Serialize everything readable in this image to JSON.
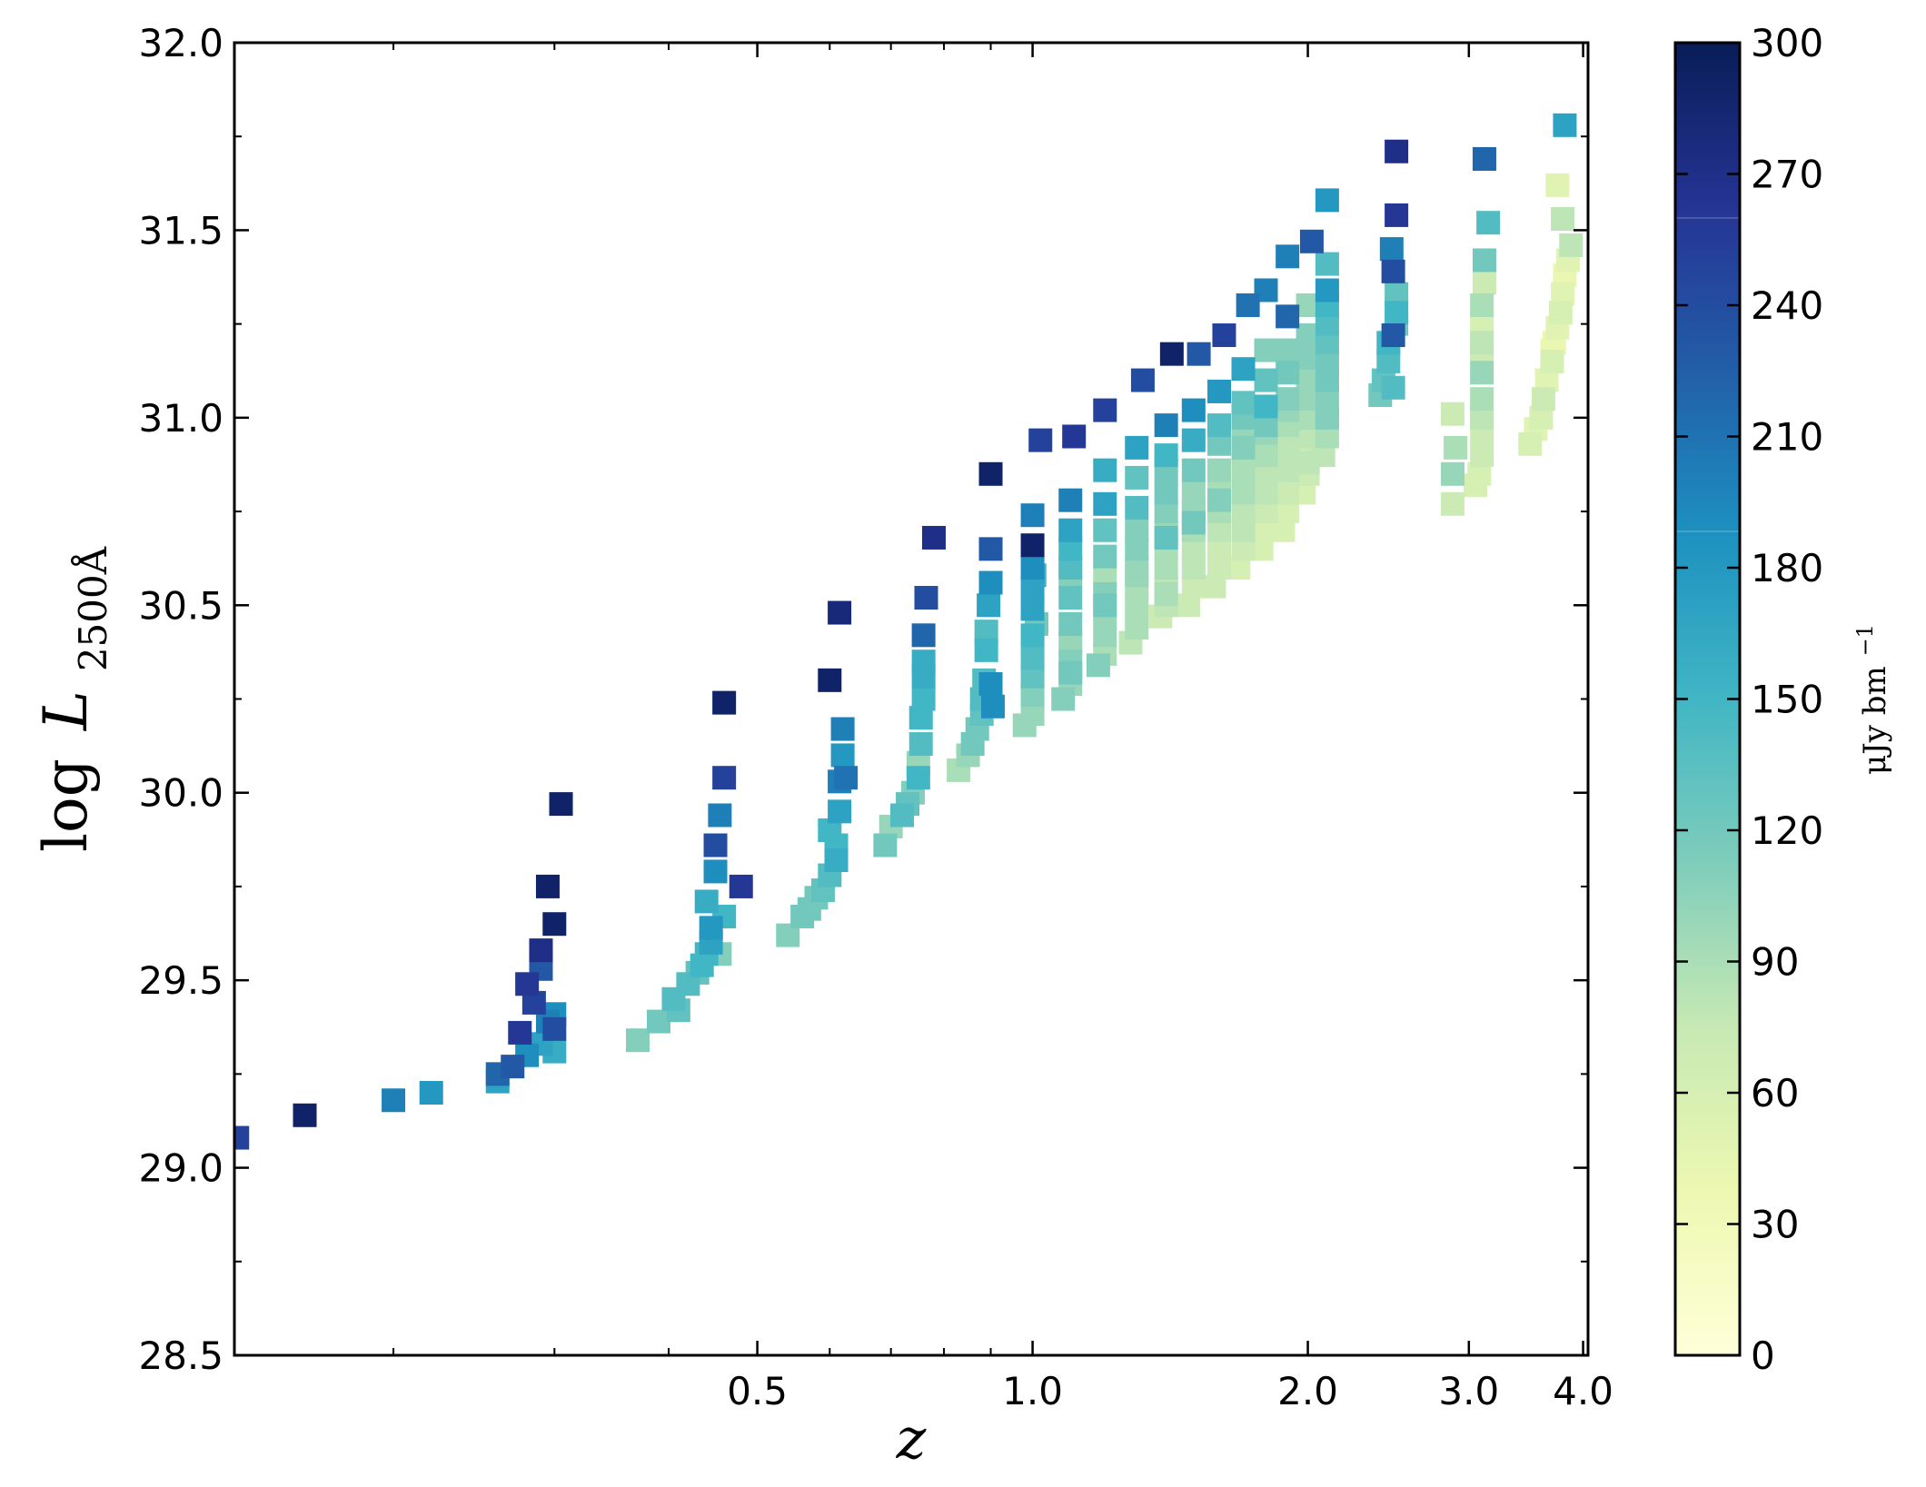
{
  "chart_data": {
    "type": "scatter",
    "xlabel": "z",
    "ylabel": "log L₂₅₀₀Å",
    "ylabel_main": "log",
    "ylabel_var": "L",
    "ylabel_sub": "2500Å",
    "xscale": "log",
    "xlim": [
      0.134,
      4.05
    ],
    "ylim": [
      28.5,
      32.0
    ],
    "xticks": [
      0.5,
      1.0,
      2.0,
      3.0,
      4.0
    ],
    "xtick_labels": [
      "0.5",
      "1.0",
      "2.0",
      "3.0",
      "4.0"
    ],
    "yticks": [
      28.5,
      29.0,
      29.5,
      30.0,
      30.5,
      31.0,
      31.5,
      32.0
    ],
    "ytick_labels": [
      "28.5",
      "29.0",
      "29.5",
      "30.0",
      "30.5",
      "31.0",
      "31.5",
      "32.0"
    ],
    "colorbar": {
      "label": "μJy bm⁻¹",
      "label_main": "μJy bm",
      "label_sup": "−1",
      "min": 0,
      "max": 300,
      "ticks": [
        0,
        30,
        60,
        90,
        120,
        150,
        180,
        210,
        240,
        270,
        300
      ],
      "tick_labels": [
        "0",
        "30",
        "60",
        "90",
        "120",
        "150",
        "180",
        "210",
        "240",
        "270",
        "300"
      ],
      "colormap": [
        "#ffffd9",
        "#edf8b1",
        "#c7e9b4",
        "#7fcdbb",
        "#41b6c4",
        "#1d91c0",
        "#225ea8",
        "#253494",
        "#081d58"
      ]
    },
    "points": [
      [
        0.135,
        29.08,
        250
      ],
      [
        0.16,
        29.14,
        290
      ],
      [
        0.2,
        29.18,
        200
      ],
      [
        0.22,
        29.2,
        180
      ],
      [
        0.26,
        29.23,
        170
      ],
      [
        0.26,
        29.25,
        220
      ],
      [
        0.27,
        29.27,
        230
      ],
      [
        0.275,
        29.36,
        260
      ],
      [
        0.28,
        29.3,
        190
      ],
      [
        0.28,
        29.49,
        260
      ],
      [
        0.285,
        29.44,
        250
      ],
      [
        0.29,
        29.33,
        170
      ],
      [
        0.29,
        29.58,
        270
      ],
      [
        0.29,
        29.53,
        230
      ],
      [
        0.295,
        29.39,
        200
      ],
      [
        0.295,
        29.75,
        290
      ],
      [
        0.3,
        29.41,
        190
      ],
      [
        0.3,
        29.65,
        290
      ],
      [
        0.3,
        29.37,
        240
      ],
      [
        0.3,
        29.31,
        160
      ],
      [
        0.305,
        29.97,
        290
      ],
      [
        0.37,
        29.34,
        110
      ],
      [
        0.39,
        29.39,
        120
      ],
      [
        0.405,
        29.45,
        140
      ],
      [
        0.41,
        29.42,
        130
      ],
      [
        0.42,
        29.49,
        140
      ],
      [
        0.43,
        29.52,
        130
      ],
      [
        0.435,
        29.54,
        150
      ],
      [
        0.44,
        29.57,
        150
      ],
      [
        0.44,
        29.71,
        160
      ],
      [
        0.445,
        29.6,
        170
      ],
      [
        0.445,
        29.64,
        180
      ],
      [
        0.45,
        29.86,
        240
      ],
      [
        0.45,
        29.79,
        190
      ],
      [
        0.455,
        29.94,
        200
      ],
      [
        0.455,
        29.57,
        110
      ],
      [
        0.46,
        29.67,
        150
      ],
      [
        0.46,
        30.04,
        250
      ],
      [
        0.46,
        30.24,
        290
      ],
      [
        0.48,
        29.75,
        260
      ],
      [
        0.54,
        29.62,
        110
      ],
      [
        0.56,
        29.67,
        120
      ],
      [
        0.57,
        29.69,
        120
      ],
      [
        0.58,
        29.72,
        120
      ],
      [
        0.59,
        29.74,
        130
      ],
      [
        0.6,
        29.78,
        140
      ],
      [
        0.6,
        29.9,
        150
      ],
      [
        0.61,
        29.82,
        160
      ],
      [
        0.61,
        29.86,
        150
      ],
      [
        0.615,
        29.95,
        170
      ],
      [
        0.615,
        30.03,
        200
      ],
      [
        0.62,
        30.1,
        180
      ],
      [
        0.62,
        30.17,
        200
      ],
      [
        0.625,
        30.04,
        210
      ],
      [
        0.6,
        30.3,
        290
      ],
      [
        0.615,
        30.48,
        280
      ],
      [
        0.69,
        29.86,
        120
      ],
      [
        0.7,
        29.91,
        100
      ],
      [
        0.72,
        29.94,
        140
      ],
      [
        0.73,
        29.97,
        130
      ],
      [
        0.74,
        30.0,
        110
      ],
      [
        0.75,
        30.04,
        150
      ],
      [
        0.75,
        30.08,
        100
      ],
      [
        0.755,
        30.13,
        140
      ],
      [
        0.755,
        30.2,
        150
      ],
      [
        0.76,
        30.25,
        150
      ],
      [
        0.76,
        30.31,
        160
      ],
      [
        0.76,
        30.35,
        160
      ],
      [
        0.76,
        30.42,
        220
      ],
      [
        0.765,
        30.52,
        240
      ],
      [
        0.78,
        30.68,
        270
      ],
      [
        0.83,
        30.06,
        90
      ],
      [
        0.85,
        30.1,
        100
      ],
      [
        0.86,
        30.13,
        120
      ],
      [
        0.87,
        30.17,
        120
      ],
      [
        0.88,
        30.21,
        130
      ],
      [
        0.88,
        30.25,
        140
      ],
      [
        0.885,
        30.3,
        140
      ],
      [
        0.89,
        30.38,
        150
      ],
      [
        0.89,
        30.43,
        140
      ],
      [
        0.895,
        30.5,
        170
      ],
      [
        0.9,
        30.56,
        190
      ],
      [
        0.9,
        30.65,
        230
      ],
      [
        0.9,
        30.85,
        290
      ],
      [
        0.9,
        30.29,
        190
      ],
      [
        0.905,
        30.23,
        190
      ],
      [
        0.98,
        30.18,
        100
      ],
      [
        1.0,
        30.21,
        100
      ],
      [
        1.0,
        30.26,
        110
      ],
      [
        1.0,
        30.31,
        130
      ],
      [
        1.0,
        30.36,
        140
      ],
      [
        1.0,
        30.42,
        150
      ],
      [
        1.0,
        30.49,
        170
      ],
      [
        1.0,
        30.55,
        170
      ],
      [
        1.0,
        30.6,
        190
      ],
      [
        1.0,
        30.66,
        290
      ],
      [
        1.0,
        30.74,
        200
      ],
      [
        1.02,
        30.94,
        250
      ],
      [
        1.01,
        30.45,
        120
      ],
      [
        1.005,
        30.58,
        150
      ],
      [
        1.08,
        30.25,
        110
      ],
      [
        1.1,
        30.29,
        100
      ],
      [
        1.1,
        30.35,
        110
      ],
      [
        1.1,
        30.4,
        100
      ],
      [
        1.1,
        30.45,
        120
      ],
      [
        1.1,
        30.52,
        130
      ],
      [
        1.1,
        30.58,
        110
      ],
      [
        1.1,
        30.65,
        150
      ],
      [
        1.1,
        30.7,
        170
      ],
      [
        1.1,
        30.78,
        200
      ],
      [
        1.11,
        30.95,
        260
      ],
      [
        1.1,
        30.32,
        120
      ],
      [
        1.1,
        30.6,
        140
      ],
      [
        1.18,
        30.34,
        110
      ],
      [
        1.2,
        30.37,
        90
      ],
      [
        1.2,
        30.42,
        100
      ],
      [
        1.2,
        30.48,
        100
      ],
      [
        1.2,
        30.53,
        110
      ],
      [
        1.2,
        30.58,
        90
      ],
      [
        1.2,
        30.63,
        120
      ],
      [
        1.2,
        30.7,
        130
      ],
      [
        1.2,
        30.77,
        170
      ],
      [
        1.2,
        30.86,
        160
      ],
      [
        1.2,
        31.02,
        250
      ],
      [
        1.2,
        30.5,
        120
      ],
      [
        1.28,
        30.4,
        80
      ],
      [
        1.3,
        30.44,
        90
      ],
      [
        1.3,
        30.5,
        90
      ],
      [
        1.3,
        30.55,
        90
      ],
      [
        1.3,
        30.6,
        100
      ],
      [
        1.3,
        30.65,
        110
      ],
      [
        1.3,
        30.7,
        110
      ],
      [
        1.3,
        30.76,
        140
      ],
      [
        1.3,
        30.84,
        130
      ],
      [
        1.3,
        30.92,
        170
      ],
      [
        1.32,
        31.1,
        240
      ],
      [
        1.3,
        30.58,
        100
      ],
      [
        1.38,
        30.47,
        70
      ],
      [
        1.4,
        30.5,
        80
      ],
      [
        1.4,
        30.55,
        80
      ],
      [
        1.4,
        30.6,
        90
      ],
      [
        1.4,
        30.65,
        90
      ],
      [
        1.4,
        30.7,
        100
      ],
      [
        1.4,
        30.75,
        110
      ],
      [
        1.4,
        30.8,
        120
      ],
      [
        1.4,
        30.86,
        120
      ],
      [
        1.4,
        30.9,
        150
      ],
      [
        1.4,
        30.98,
        200
      ],
      [
        1.42,
        31.17,
        290
      ],
      [
        1.4,
        30.53,
        90
      ],
      [
        1.4,
        30.68,
        130
      ],
      [
        1.48,
        30.5,
        70
      ],
      [
        1.5,
        30.55,
        70
      ],
      [
        1.5,
        30.6,
        80
      ],
      [
        1.5,
        30.65,
        80
      ],
      [
        1.5,
        30.7,
        90
      ],
      [
        1.5,
        30.75,
        100
      ],
      [
        1.5,
        30.8,
        100
      ],
      [
        1.5,
        30.86,
        120
      ],
      [
        1.5,
        30.94,
        160
      ],
      [
        1.5,
        31.02,
        190
      ],
      [
        1.52,
        31.17,
        230
      ],
      [
        1.5,
        30.72,
        120
      ],
      [
        1.58,
        30.55,
        70
      ],
      [
        1.6,
        30.6,
        70
      ],
      [
        1.6,
        30.65,
        70
      ],
      [
        1.6,
        30.7,
        80
      ],
      [
        1.6,
        30.75,
        90
      ],
      [
        1.6,
        30.8,
        90
      ],
      [
        1.6,
        30.86,
        100
      ],
      [
        1.6,
        30.93,
        120
      ],
      [
        1.6,
        30.98,
        140
      ],
      [
        1.6,
        31.07,
        180
      ],
      [
        1.62,
        31.22,
        250
      ],
      [
        1.6,
        30.78,
        110
      ],
      [
        1.68,
        30.6,
        60
      ],
      [
        1.7,
        30.65,
        70
      ],
      [
        1.7,
        30.7,
        80
      ],
      [
        1.7,
        30.75,
        80
      ],
      [
        1.7,
        30.8,
        90
      ],
      [
        1.7,
        30.86,
        90
      ],
      [
        1.7,
        30.92,
        110
      ],
      [
        1.7,
        31.0,
        120
      ],
      [
        1.7,
        31.04,
        130
      ],
      [
        1.7,
        31.13,
        170
      ],
      [
        1.72,
        31.3,
        210
      ],
      [
        1.7,
        30.95,
        100
      ],
      [
        1.78,
        30.65,
        60
      ],
      [
        1.8,
        30.7,
        60
      ],
      [
        1.8,
        30.75,
        70
      ],
      [
        1.8,
        30.8,
        80
      ],
      [
        1.8,
        30.85,
        80
      ],
      [
        1.8,
        30.9,
        90
      ],
      [
        1.8,
        30.96,
        100
      ],
      [
        1.8,
        31.03,
        150
      ],
      [
        1.8,
        31.1,
        130
      ],
      [
        1.8,
        31.18,
        110
      ],
      [
        1.8,
        31.34,
        200
      ],
      [
        1.8,
        30.98,
        120
      ],
      [
        1.88,
        30.7,
        60
      ],
      [
        1.9,
        30.75,
        60
      ],
      [
        1.9,
        30.8,
        70
      ],
      [
        1.9,
        30.86,
        80
      ],
      [
        1.9,
        30.92,
        80
      ],
      [
        1.9,
        30.98,
        90
      ],
      [
        1.9,
        31.05,
        110
      ],
      [
        1.9,
        31.12,
        120
      ],
      [
        1.9,
        31.18,
        110
      ],
      [
        1.9,
        31.27,
        220
      ],
      [
        1.9,
        31.43,
        200
      ],
      [
        1.9,
        31.02,
        100
      ],
      [
        1.98,
        30.8,
        60
      ],
      [
        2.0,
        30.85,
        70
      ],
      [
        2.0,
        30.9,
        70
      ],
      [
        2.0,
        30.95,
        80
      ],
      [
        2.0,
        31.0,
        90
      ],
      [
        2.0,
        31.05,
        100
      ],
      [
        2.0,
        31.1,
        100
      ],
      [
        2.0,
        31.16,
        110
      ],
      [
        2.0,
        31.22,
        110
      ],
      [
        2.0,
        31.3,
        100
      ],
      [
        2.02,
        31.47,
        230
      ],
      [
        2.0,
        30.88,
        80
      ],
      [
        2.08,
        30.9,
        80
      ],
      [
        2.1,
        30.95,
        90
      ],
      [
        2.1,
        31.0,
        100
      ],
      [
        2.1,
        31.05,
        110
      ],
      [
        2.1,
        31.1,
        120
      ],
      [
        2.1,
        31.15,
        120
      ],
      [
        2.1,
        31.2,
        130
      ],
      [
        2.1,
        31.25,
        140
      ],
      [
        2.1,
        31.3,
        150
      ],
      [
        2.1,
        31.34,
        180
      ],
      [
        2.1,
        31.41,
        140
      ],
      [
        2.1,
        31.58,
        180
      ],
      [
        2.1,
        31.0,
        110
      ],
      [
        2.4,
        31.06,
        120
      ],
      [
        2.42,
        31.1,
        130
      ],
      [
        2.45,
        31.15,
        140
      ],
      [
        2.45,
        31.2,
        150
      ],
      [
        2.48,
        31.22,
        230
      ],
      [
        2.5,
        31.25,
        120
      ],
      [
        2.5,
        31.28,
        150
      ],
      [
        2.5,
        31.33,
        130
      ],
      [
        2.48,
        31.39,
        240
      ],
      [
        2.47,
        31.45,
        200
      ],
      [
        2.5,
        31.54,
        260
      ],
      [
        2.5,
        31.71,
        270
      ],
      [
        2.48,
        31.08,
        140
      ],
      [
        2.88,
        31.01,
        70
      ],
      [
        2.9,
        30.92,
        90
      ],
      [
        2.88,
        30.85,
        100
      ],
      [
        2.88,
        30.77,
        70
      ],
      [
        3.05,
        30.82,
        60
      ],
      [
        3.08,
        30.85,
        60
      ],
      [
        3.1,
        30.9,
        70
      ],
      [
        3.1,
        30.95,
        70
      ],
      [
        3.1,
        31.0,
        80
      ],
      [
        3.1,
        31.05,
        90
      ],
      [
        3.1,
        31.12,
        100
      ],
      [
        3.1,
        31.2,
        80
      ],
      [
        3.1,
        31.25,
        60
      ],
      [
        3.1,
        31.3,
        90
      ],
      [
        3.12,
        31.36,
        70
      ],
      [
        3.12,
        31.42,
        120
      ],
      [
        3.15,
        31.52,
        140
      ],
      [
        3.12,
        31.69,
        220
      ],
      [
        3.1,
        31.18,
        70
      ],
      [
        3.5,
        30.93,
        60
      ],
      [
        3.55,
        30.97,
        50
      ],
      [
        3.6,
        31.0,
        60
      ],
      [
        3.62,
        31.05,
        70
      ],
      [
        3.65,
        31.1,
        50
      ],
      [
        3.7,
        31.15,
        60
      ],
      [
        3.72,
        31.2,
        40
      ],
      [
        3.75,
        31.24,
        50
      ],
      [
        3.78,
        31.28,
        60
      ],
      [
        3.8,
        31.33,
        50
      ],
      [
        3.82,
        31.38,
        40
      ],
      [
        3.85,
        31.42,
        50
      ],
      [
        3.88,
        31.46,
        80
      ],
      [
        3.8,
        31.53,
        80
      ],
      [
        3.75,
        31.62,
        50
      ],
      [
        3.82,
        31.78,
        170
      ],
      [
        3.7,
        31.18,
        40
      ]
    ]
  }
}
